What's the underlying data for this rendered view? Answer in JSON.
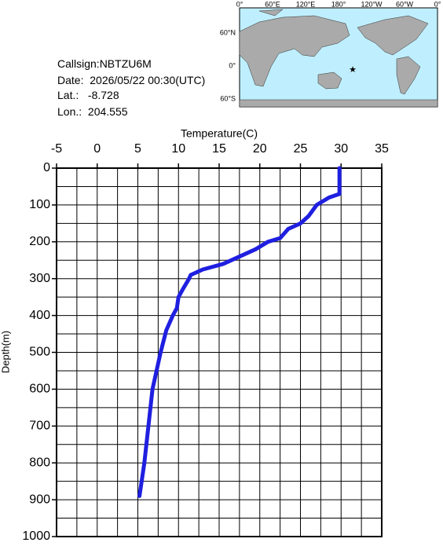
{
  "info": {
    "callsign": "Callsign:NBTZU6M",
    "date": "Date:  2026/05/22 00:30(UTC)",
    "lat": "Lat.:   -8.728",
    "lon": "Lon.:  204.555"
  },
  "map": {
    "lon_labels": [
      "0°",
      "60°E",
      "120°E",
      "180°",
      "120°W",
      "60°W",
      "0°"
    ],
    "lat_labels": [
      "60°N",
      "0°",
      "60°S"
    ]
  },
  "chart_data": {
    "type": "line",
    "x_label": "Temperature(C)",
    "y_label": "Depth(m)",
    "color": "#1f1fe0",
    "values": [
      29.8,
      29.8,
      28.5,
      27,
      26,
      25,
      23.5,
      22.5,
      21,
      19.5,
      17.5,
      15.5,
      13,
      11.5,
      11.3,
      10.5,
      10,
      9.8,
      9.3,
      8.5,
      7.8,
      6.8,
      6.3,
      5.8,
      5.2
    ],
    "depth": [
      0,
      70,
      80,
      100,
      130,
      150,
      165,
      190,
      200,
      220,
      240,
      260,
      275,
      290,
      300,
      330,
      350,
      380,
      400,
      440,
      500,
      600,
      700,
      800,
      890
    ],
    "xlim": [
      -5,
      35
    ],
    "xticks": [
      -5,
      0,
      5,
      10,
      15,
      20,
      25,
      30,
      35
    ],
    "ylim": [
      0,
      1000
    ],
    "yticks": [
      0,
      100,
      200,
      300,
      400,
      500,
      600,
      700,
      800,
      900,
      1000
    ],
    "xgrid": [
      -2.5,
      2.5,
      7.5,
      12.5,
      17.5,
      22.5,
      27.5,
      32.5
    ],
    "ygrid": [
      50,
      150,
      250,
      350,
      450,
      550,
      650,
      750,
      850,
      950
    ],
    "grid": true
  }
}
